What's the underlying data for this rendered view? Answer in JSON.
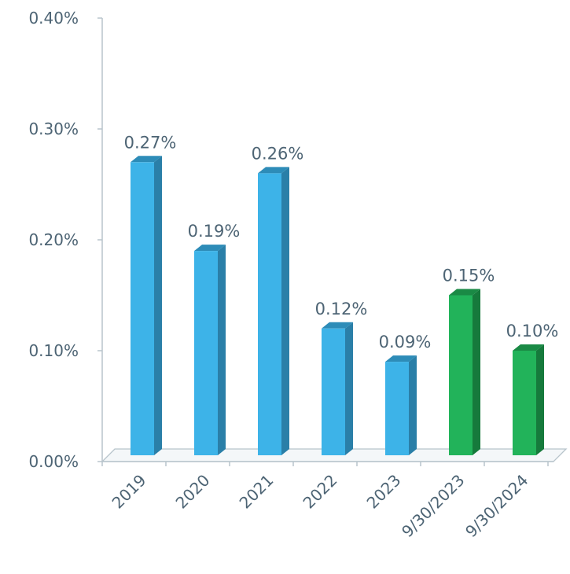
{
  "chart_data": {
    "type": "bar",
    "categories": [
      "2019",
      "2020",
      "2021",
      "2022",
      "2023",
      "9/30/2023",
      "9/30/2024"
    ],
    "values": [
      0.27,
      0.19,
      0.26,
      0.12,
      0.09,
      0.15,
      0.1
    ],
    "data_labels": [
      "0.27%",
      "0.19%",
      "0.26%",
      "0.12%",
      "0.09%",
      "0.15%",
      "0.10%"
    ],
    "y_ticks": [
      0,
      0.1,
      0.2,
      0.3,
      0.4
    ],
    "y_tick_labels": [
      "0.00%",
      "0.10%",
      "0.20%",
      "0.30%",
      "0.40%"
    ],
    "ylim": [
      0,
      0.4
    ],
    "title": "",
    "xlabel": "",
    "ylabel": "",
    "grid": false,
    "legend": "none",
    "style": "3d",
    "bar_colors": [
      "#3db3e8",
      "#3db3e8",
      "#3db3e8",
      "#3db3e8",
      "#3db3e8",
      "#22b35a",
      "#22b35a"
    ],
    "bar_side_colors": [
      "#2a7fa8",
      "#2a7fa8",
      "#2a7fa8",
      "#2a7fa8",
      "#2a7fa8",
      "#167a3c",
      "#167a3c"
    ],
    "bar_top_colors": [
      "#2d8cb8",
      "#2d8cb8",
      "#2d8cb8",
      "#2d8cb8",
      "#2d8cb8",
      "#1a8a45",
      "#1a8a45"
    ],
    "axis_color": "#b8c4cc"
  }
}
